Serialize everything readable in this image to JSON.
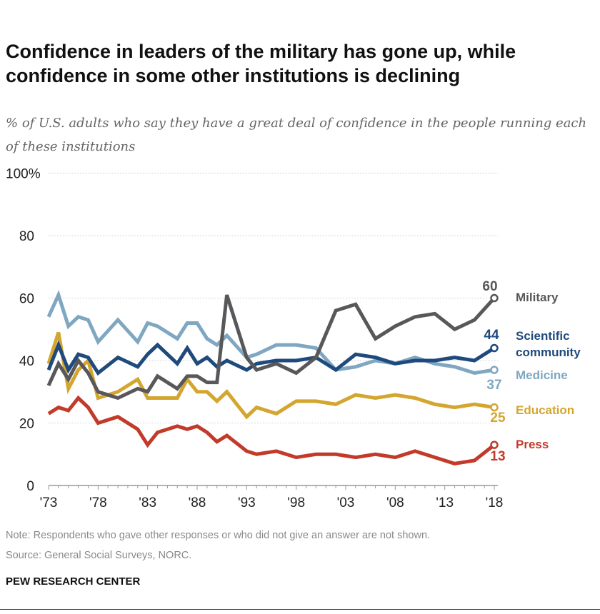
{
  "title": "Confidence in leaders of the military has gone up, while confidence in some other institutions is declining",
  "subtitle": "% of U.S. adults who say they have a great deal of confidence in the people running each of these institutions",
  "note": "Note: Respondents who gave other responses or who did not give an answer are not shown.",
  "source": "Source: General Social Surveys, NORC.",
  "brand": "PEW RESEARCH CENTER",
  "chart_data": {
    "type": "line",
    "title": "",
    "xlabel": "",
    "ylabel": "",
    "ylim": [
      0,
      100
    ],
    "y_ticks": [
      "0",
      "20",
      "40",
      "60",
      "80",
      "100%"
    ],
    "x_ticks": [
      "'73",
      "'78",
      "'83",
      "'88",
      "'93",
      "'98",
      "'03",
      "'08",
      "'13",
      "'18"
    ],
    "grid": "dotted horizontal",
    "legend": "direct labels at right",
    "x": [
      1973,
      1974,
      1975,
      1976,
      1977,
      1978,
      1980,
      1982,
      1983,
      1984,
      1986,
      1987,
      1988,
      1989,
      1990,
      1991,
      1993,
      1994,
      1996,
      1998,
      2000,
      2002,
      2004,
      2006,
      2008,
      2010,
      2012,
      2014,
      2016,
      2018
    ],
    "series": [
      {
        "name": "Military",
        "label": "Military",
        "end_value": "60",
        "color": "#58585a",
        "values": [
          32,
          39,
          34,
          40,
          36,
          30,
          28,
          31,
          30,
          35,
          31,
          35,
          35,
          33,
          33,
          61,
          41,
          37,
          39,
          36,
          41,
          56,
          58,
          47,
          51,
          54,
          55,
          50,
          53,
          60
        ]
      },
      {
        "name": "Scientific community",
        "label_lines": [
          "Scientific",
          "community"
        ],
        "end_value": "44",
        "color": "#1f4a7d",
        "values": [
          37,
          45,
          37,
          42,
          41,
          36,
          41,
          38,
          42,
          45,
          39,
          44,
          39,
          41,
          38,
          40,
          37,
          39,
          40,
          40,
          41,
          37,
          42,
          41,
          39,
          40,
          40,
          41,
          40,
          44
        ]
      },
      {
        "name": "Medicine",
        "label": "Medicine",
        "end_value": "37",
        "color": "#7fa7c2",
        "values": [
          54,
          61,
          51,
          54,
          53,
          46,
          53,
          46,
          52,
          51,
          47,
          52,
          52,
          47,
          45,
          48,
          41,
          42,
          45,
          45,
          44,
          37,
          38,
          40,
          39,
          41,
          39,
          38,
          36,
          37
        ]
      },
      {
        "name": "Education",
        "label": "Education",
        "end_value": "25",
        "color": "#d4a630",
        "values": [
          39,
          49,
          31,
          37,
          40,
          28,
          30,
          34,
          28,
          28,
          28,
          34,
          30,
          30,
          27,
          30,
          22,
          25,
          23,
          27,
          27,
          26,
          29,
          28,
          29,
          28,
          26,
          25,
          26,
          25
        ]
      },
      {
        "name": "Press",
        "label": "Press",
        "end_value": "13",
        "color": "#c23a29",
        "values": [
          23,
          25,
          24,
          28,
          25,
          20,
          22,
          18,
          13,
          17,
          19,
          18,
          19,
          17,
          14,
          16,
          11,
          10,
          11,
          9,
          10,
          10,
          9,
          10,
          9,
          11,
          9,
          7,
          8,
          13
        ]
      }
    ]
  }
}
